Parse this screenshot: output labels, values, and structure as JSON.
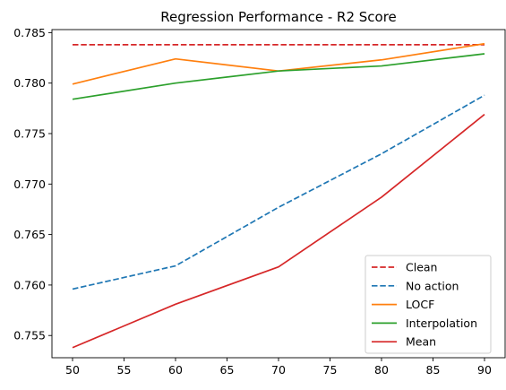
{
  "chart_data": {
    "type": "line",
    "title": "Regression Performance - R2 Score",
    "xlabel": "",
    "ylabel": "",
    "x": [
      50,
      60,
      70,
      80,
      90
    ],
    "xlim": [
      48,
      92
    ],
    "ylim": [
      0.7528,
      0.7853
    ],
    "xticks": [
      50,
      55,
      60,
      65,
      70,
      75,
      80,
      85,
      90
    ],
    "yticks": [
      0.755,
      0.76,
      0.765,
      0.77,
      0.775,
      0.78,
      0.785
    ],
    "ytick_labels": [
      "0.755",
      "0.760",
      "0.765",
      "0.770",
      "0.775",
      "0.780",
      "0.785"
    ],
    "grid": false,
    "legend_position": "lower-right",
    "series": [
      {
        "name": "Clean",
        "color": "#d62728",
        "dash": "dashed",
        "values": [
          0.7838,
          0.7838,
          0.7838,
          0.7838,
          0.7838
        ]
      },
      {
        "name": "No action",
        "color": "#1f77b4",
        "dash": "dashed",
        "values": [
          0.7596,
          0.7619,
          0.7677,
          0.773,
          0.7788
        ]
      },
      {
        "name": "LOCF",
        "color": "#ff7f0e",
        "dash": "solid",
        "values": [
          0.7799,
          0.7824,
          0.7812,
          0.7823,
          0.7839
        ]
      },
      {
        "name": "Interpolation",
        "color": "#2ca02c",
        "dash": "solid",
        "values": [
          0.7784,
          0.78,
          0.7812,
          0.7817,
          0.7829
        ]
      },
      {
        "name": "Mean",
        "color": "#d62728",
        "dash": "solid",
        "values": [
          0.7538,
          0.7581,
          0.7618,
          0.7687,
          0.7769
        ]
      }
    ]
  }
}
